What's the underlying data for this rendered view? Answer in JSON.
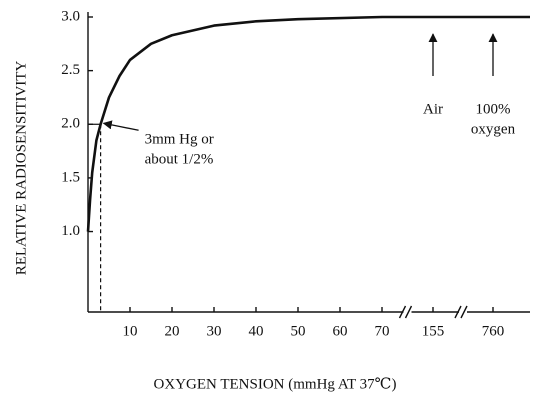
{
  "chart_data": {
    "type": "line",
    "y_label": "RELATIVE RADIOSENSITIVITY",
    "x_label": "OXYGEN TENSION (mmHg AT 37℃)",
    "x": [
      0,
      0.5,
      1,
      2,
      3,
      5,
      7.5,
      10,
      15,
      20,
      30,
      40,
      50,
      70,
      155,
      760,
      800
    ],
    "values": [
      1.0,
      1.3,
      1.55,
      1.85,
      2.0,
      2.25,
      2.45,
      2.6,
      2.75,
      2.83,
      2.92,
      2.96,
      2.98,
      3.0,
      3.0,
      3.0,
      3.0
    ],
    "color": "#111111",
    "xlim": [
      0,
      800
    ],
    "xticks": [
      10,
      20,
      30,
      40,
      50,
      60,
      70,
      155,
      760
    ],
    "axis_breaks": true,
    "ylim": [
      0.25,
      3.0
    ],
    "yticks": [
      {
        "value": 1.0,
        "label": "1.0"
      },
      1.5,
      {
        "value": 2.0,
        "label": "2.0"
      },
      2.5,
      {
        "value": 3.0,
        "label": "3.0"
      }
    ],
    "marker": {
      "x": 3,
      "y": 2.0,
      "text": [
        "3mm Hg or",
        "about 1/2%"
      ]
    },
    "annotations": [
      {
        "x": 155,
        "text": [
          "Air"
        ]
      },
      {
        "x": 760,
        "text": [
          "100%",
          "oxygen"
        ]
      }
    ]
  }
}
